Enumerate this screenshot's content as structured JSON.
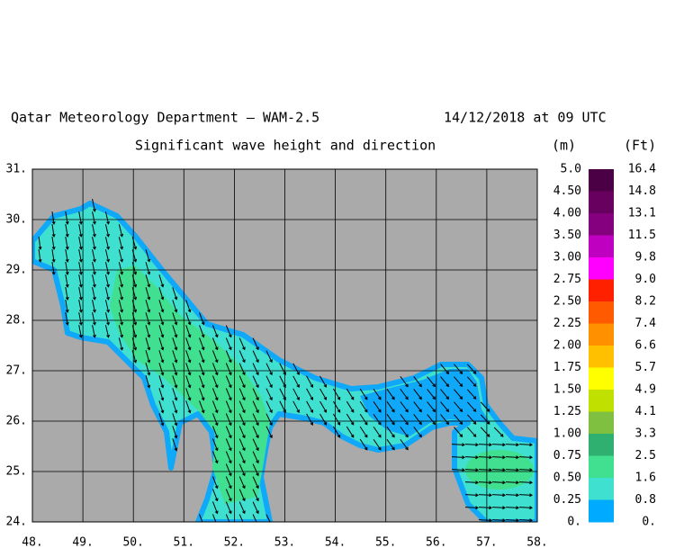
{
  "header": {
    "title_left": "Qatar Meteorology Department – WAM-2.5",
    "title_right": "14/12/2018 at 09 UTC",
    "subtitle": "Significant wave height and direction",
    "unit_m": "(m)",
    "unit_ft": "(Ft)"
  },
  "map": {
    "xlim": [
      48,
      58
    ],
    "ylim": [
      24,
      31
    ],
    "xticks": [
      {
        "value": 48,
        "label": "48."
      },
      {
        "value": 49,
        "label": "49."
      },
      {
        "value": 50,
        "label": "50."
      },
      {
        "value": 51,
        "label": "51."
      },
      {
        "value": 52,
        "label": "52."
      },
      {
        "value": 53,
        "label": "53."
      },
      {
        "value": 54,
        "label": "54."
      },
      {
        "value": 55,
        "label": "55."
      },
      {
        "value": 56,
        "label": "56."
      },
      {
        "value": 57,
        "label": "57."
      },
      {
        "value": 58,
        "label": "58."
      }
    ],
    "yticks": [
      {
        "value": 24,
        "label": "24."
      },
      {
        "value": 25,
        "label": "25."
      },
      {
        "value": 26,
        "label": "26."
      },
      {
        "value": 27,
        "label": "27."
      },
      {
        "value": 28,
        "label": "28."
      },
      {
        "value": 29,
        "label": "29."
      },
      {
        "value": 30,
        "label": "30."
      },
      {
        "value": 31,
        "label": "31."
      }
    ]
  },
  "legend": {
    "labels_m": [
      "5.0",
      "4.50",
      "4.00",
      "3.50",
      "3.00",
      "2.75",
      "2.50",
      "2.25",
      "2.00",
      "1.75",
      "1.50",
      "1.25",
      "1.00",
      "0.75",
      "0.50",
      "0.25",
      "0."
    ],
    "labels_ft": [
      "16.4",
      "14.8",
      "13.1",
      "11.5",
      "9.8",
      "9.0",
      "8.2",
      "7.4",
      "6.6",
      "5.7",
      "4.9",
      "4.1",
      "3.3",
      "2.5",
      "1.6",
      "0.8",
      "0."
    ],
    "colors": [
      "#4b0045",
      "#68005f",
      "#85007e",
      "#c000c0",
      "#ff00ff",
      "#ff2000",
      "#ff5a00",
      "#ff9000",
      "#ffc000",
      "#ffff00",
      "#c0e000",
      "#80c040",
      "#30b070",
      "#40e090",
      "#40e0d0",
      "#00aaff"
    ]
  }
}
